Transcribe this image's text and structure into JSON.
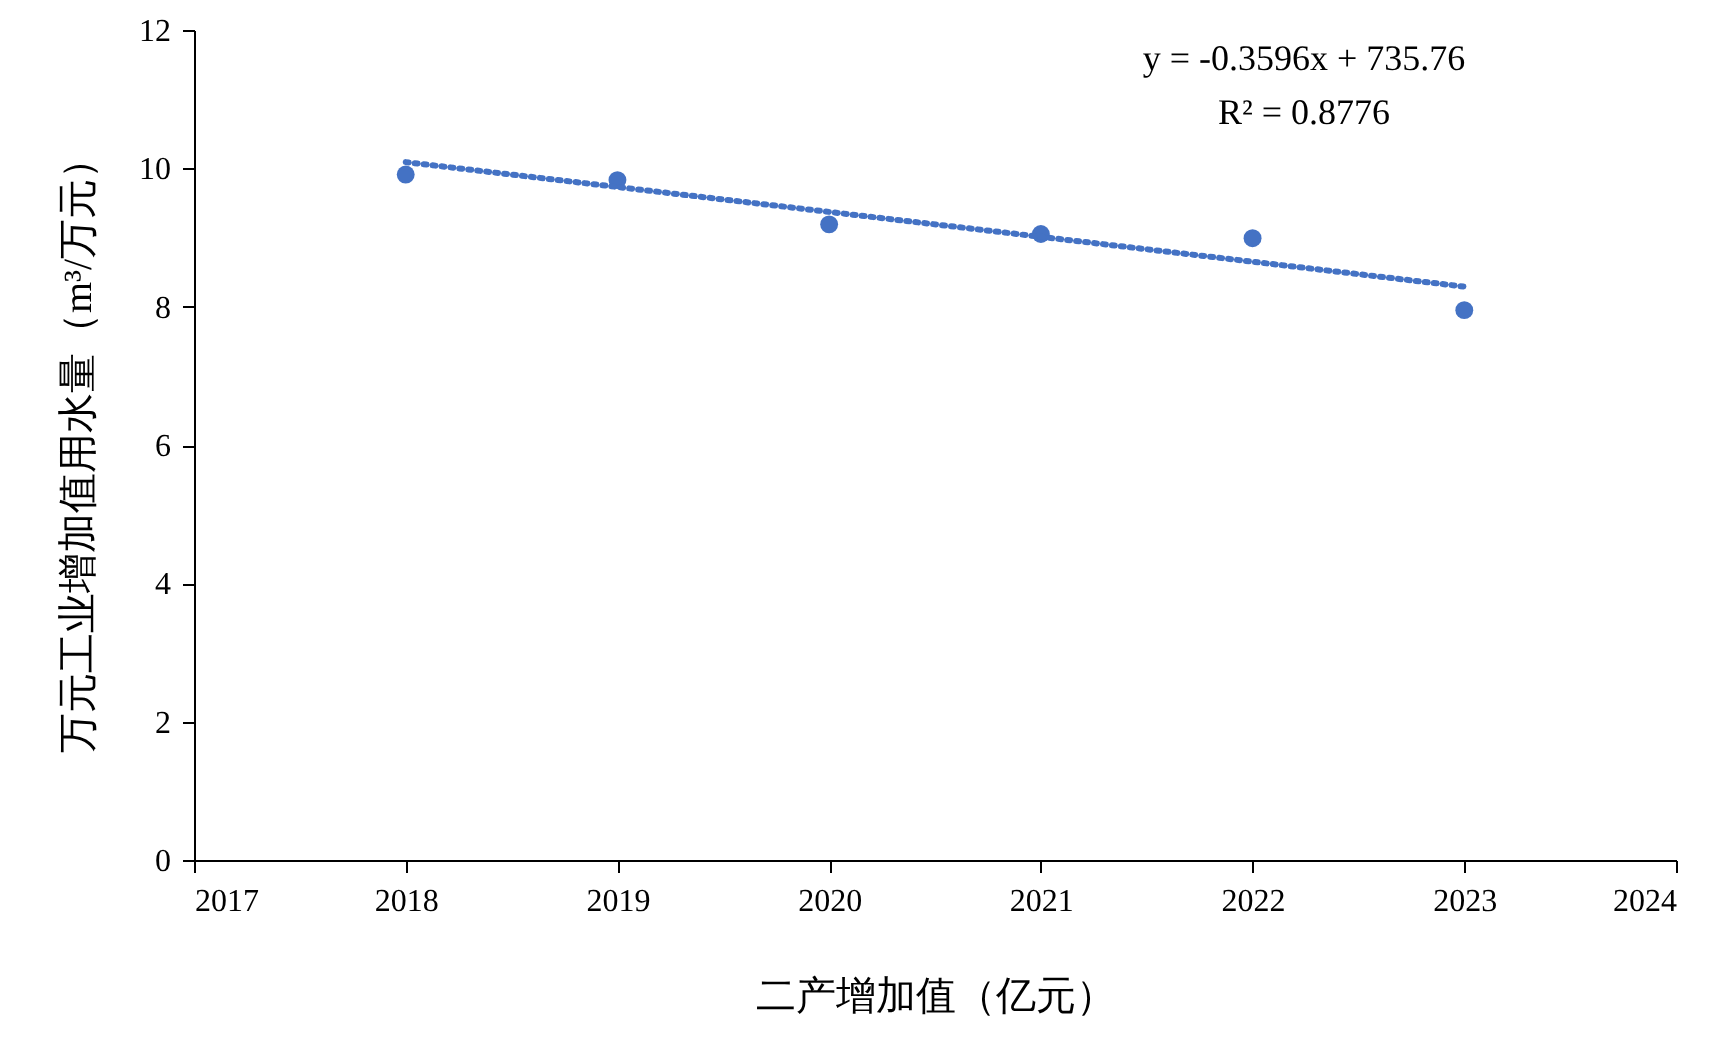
{
  "chart_data": {
    "type": "scatter",
    "xlabel": "二产增加值（亿元）",
    "ylabel": "万元工业增加值用水量（m³/万元）",
    "xlim": [
      2017,
      2024
    ],
    "xticks": [
      2017,
      2018,
      2019,
      2020,
      2021,
      2022,
      2023,
      2024
    ],
    "ylim": [
      0,
      12
    ],
    "yticks": [
      0,
      2,
      4,
      6,
      8,
      10,
      12
    ],
    "marker": "circle",
    "grid": false,
    "series": [
      {
        "color": "#4472c4",
        "x": [
          2018,
          2019,
          2020,
          2021,
          2022,
          2023
        ],
        "values": [
          9.91,
          9.83,
          9.19,
          9.05,
          8.99,
          7.95
        ]
      },
      {
        "type": "line",
        "color": "#4472c4",
        "line_style": "dotted",
        "marker": "none",
        "x": [
          2018,
          2023
        ],
        "values": [
          10.09,
          8.29
        ]
      }
    ],
    "annotations": [
      "y = -0.3596x + 735.76",
      "R² = 0.8776"
    ]
  }
}
